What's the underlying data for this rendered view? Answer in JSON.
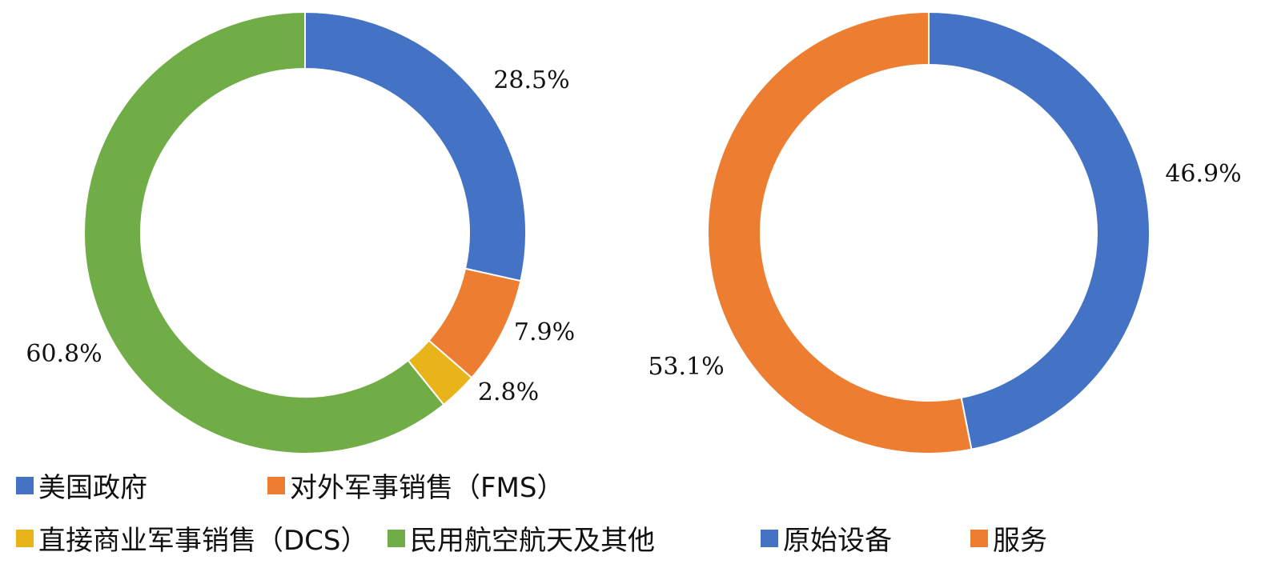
{
  "chart_data": [
    {
      "type": "pie",
      "variant": "donut",
      "slices": [
        {
          "label": "美国政府",
          "value": 28.5,
          "display": "28.5%",
          "color": "#4472C4"
        },
        {
          "label": "对外军事销售（FMS）",
          "value": 7.9,
          "display": "7.9%",
          "color": "#ED7D31"
        },
        {
          "label": "直接商业军事销售（DCS）",
          "value": 2.8,
          "display": "2.8%",
          "color": "#E9B41A"
        },
        {
          "label": "民用航空航天及其他",
          "value": 60.8,
          "display": "60.8%",
          "color": "#70AD47"
        }
      ]
    },
    {
      "type": "pie",
      "variant": "donut",
      "slices": [
        {
          "label": "原始设备",
          "value": 46.9,
          "display": "46.9%",
          "color": "#4472C4"
        },
        {
          "label": "服务",
          "value": 53.1,
          "display": "53.1%",
          "color": "#ED7D31"
        }
      ]
    }
  ]
}
